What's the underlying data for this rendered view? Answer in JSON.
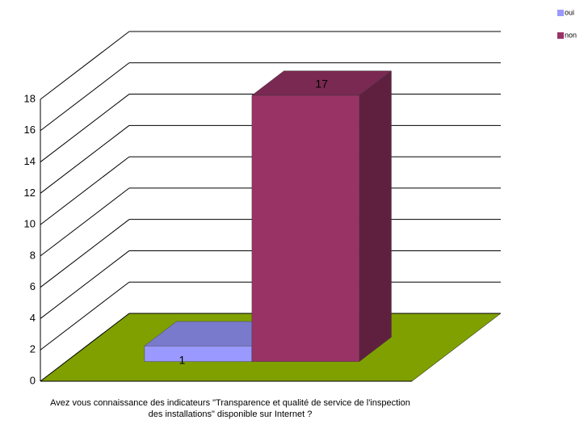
{
  "chart_data": {
    "type": "bar3d",
    "categories": [
      "Avez vous connaissance  des indicateurs  \"Transparence  et qualité de service de  l'inspection des  installations\"  disponible  sur Internet ?"
    ],
    "series": [
      {
        "name": "oui",
        "color": "#9999ff",
        "values": [
          1
        ]
      },
      {
        "name": "non",
        "color": "#993366",
        "values": [
          17
        ]
      }
    ],
    "ylim": [
      0,
      18
    ],
    "yticks": [
      0,
      2,
      4,
      6,
      8,
      10,
      12,
      14,
      16,
      18
    ],
    "grid": true,
    "legend": "top-right",
    "floor_color": "#80a000"
  }
}
